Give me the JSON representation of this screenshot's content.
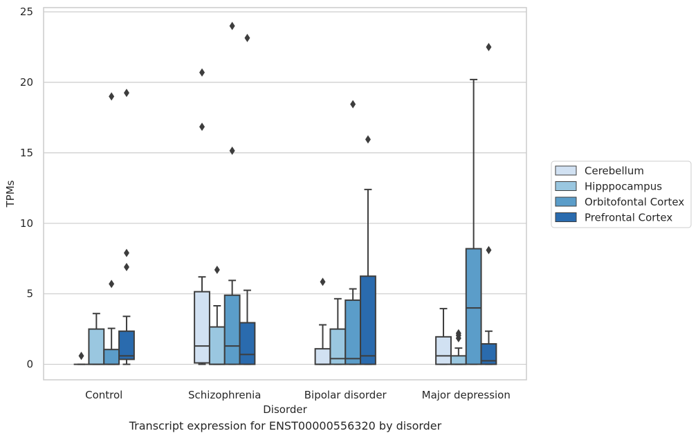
{
  "chart_data": {
    "type": "box",
    "xlabel": "Disorder",
    "ylabel": "TPMs",
    "ylim": [
      -1.1,
      25.3
    ],
    "yticks": [
      0,
      5,
      10,
      15,
      20,
      25
    ],
    "categories": [
      "Control",
      "Schizophrenia",
      "Bipolar disorder",
      "Major depression"
    ],
    "grid": "horizontal",
    "legend_position": "right",
    "series": [
      {
        "name": "Cerebellum",
        "color": "#d1e1f2",
        "boxes": [
          {
            "whislo": 0,
            "q1": 0,
            "med": 0,
            "q3": 0,
            "whishi": 0,
            "fliers": [
              0.6
            ]
          },
          {
            "whislo": 0,
            "q1": 0.1,
            "med": 1.3,
            "q3": 5.15,
            "whishi": 6.2,
            "fliers": [
              16.85,
              20.7
            ]
          },
          {
            "whislo": 0,
            "q1": 0,
            "med": 0,
            "q3": 1.1,
            "whishi": 2.8,
            "fliers": [
              5.85
            ]
          },
          {
            "whislo": 0,
            "q1": 0,
            "med": 0.6,
            "q3": 1.95,
            "whishi": 3.95,
            "fliers": []
          }
        ]
      },
      {
        "name": "Hipppocampus",
        "color": "#9ac7e0",
        "boxes": [
          {
            "whislo": 0,
            "q1": 0,
            "med": 0,
            "q3": 2.5,
            "whishi": 3.6,
            "fliers": []
          },
          {
            "whislo": 0,
            "q1": 0,
            "med": 0,
            "q3": 2.65,
            "whishi": 4.15,
            "fliers": [
              6.7
            ]
          },
          {
            "whislo": 0,
            "q1": 0,
            "med": 0.4,
            "q3": 2.5,
            "whishi": 4.65,
            "fliers": []
          },
          {
            "whislo": 0,
            "q1": 0,
            "med": 0,
            "q3": 0.6,
            "whishi": 1.15,
            "fliers": [
              1.85,
              2.05,
              2.2
            ]
          }
        ]
      },
      {
        "name": "Orbitofontal Cortex",
        "color": "#5b9dc9",
        "boxes": [
          {
            "whislo": 0,
            "q1": 0,
            "med": 0,
            "q3": 1.05,
            "whishi": 2.55,
            "fliers": [
              5.7,
              19.0
            ]
          },
          {
            "whislo": 0,
            "q1": 0,
            "med": 1.3,
            "q3": 4.9,
            "whishi": 5.95,
            "fliers": [
              15.15,
              24.0
            ]
          },
          {
            "whislo": 0,
            "q1": 0,
            "med": 0.4,
            "q3": 4.55,
            "whishi": 5.35,
            "fliers": [
              18.45
            ]
          },
          {
            "whislo": 0,
            "q1": 0,
            "med": 4.0,
            "q3": 8.2,
            "whishi": 20.2,
            "fliers": []
          }
        ]
      },
      {
        "name": "Prefrontal Cortex",
        "color": "#2a6bae",
        "boxes": [
          {
            "whislo": 0,
            "q1": 0.35,
            "med": 0.6,
            "q3": 2.35,
            "whishi": 3.4,
            "fliers": [
              6.9,
              7.9,
              19.25
            ]
          },
          {
            "whislo": 0,
            "q1": 0,
            "med": 0.7,
            "q3": 2.95,
            "whishi": 5.25,
            "fliers": [
              23.15
            ]
          },
          {
            "whislo": 0,
            "q1": 0,
            "med": 0.6,
            "q3": 6.25,
            "whishi": 12.4,
            "fliers": [
              15.95
            ]
          },
          {
            "whislo": 0,
            "q1": 0,
            "med": 0.25,
            "q3": 1.45,
            "whishi": 2.35,
            "fliers": [
              8.1,
              22.5
            ]
          }
        ]
      }
    ]
  },
  "caption": "Transcript expression for ENST00000556320 by disorder"
}
